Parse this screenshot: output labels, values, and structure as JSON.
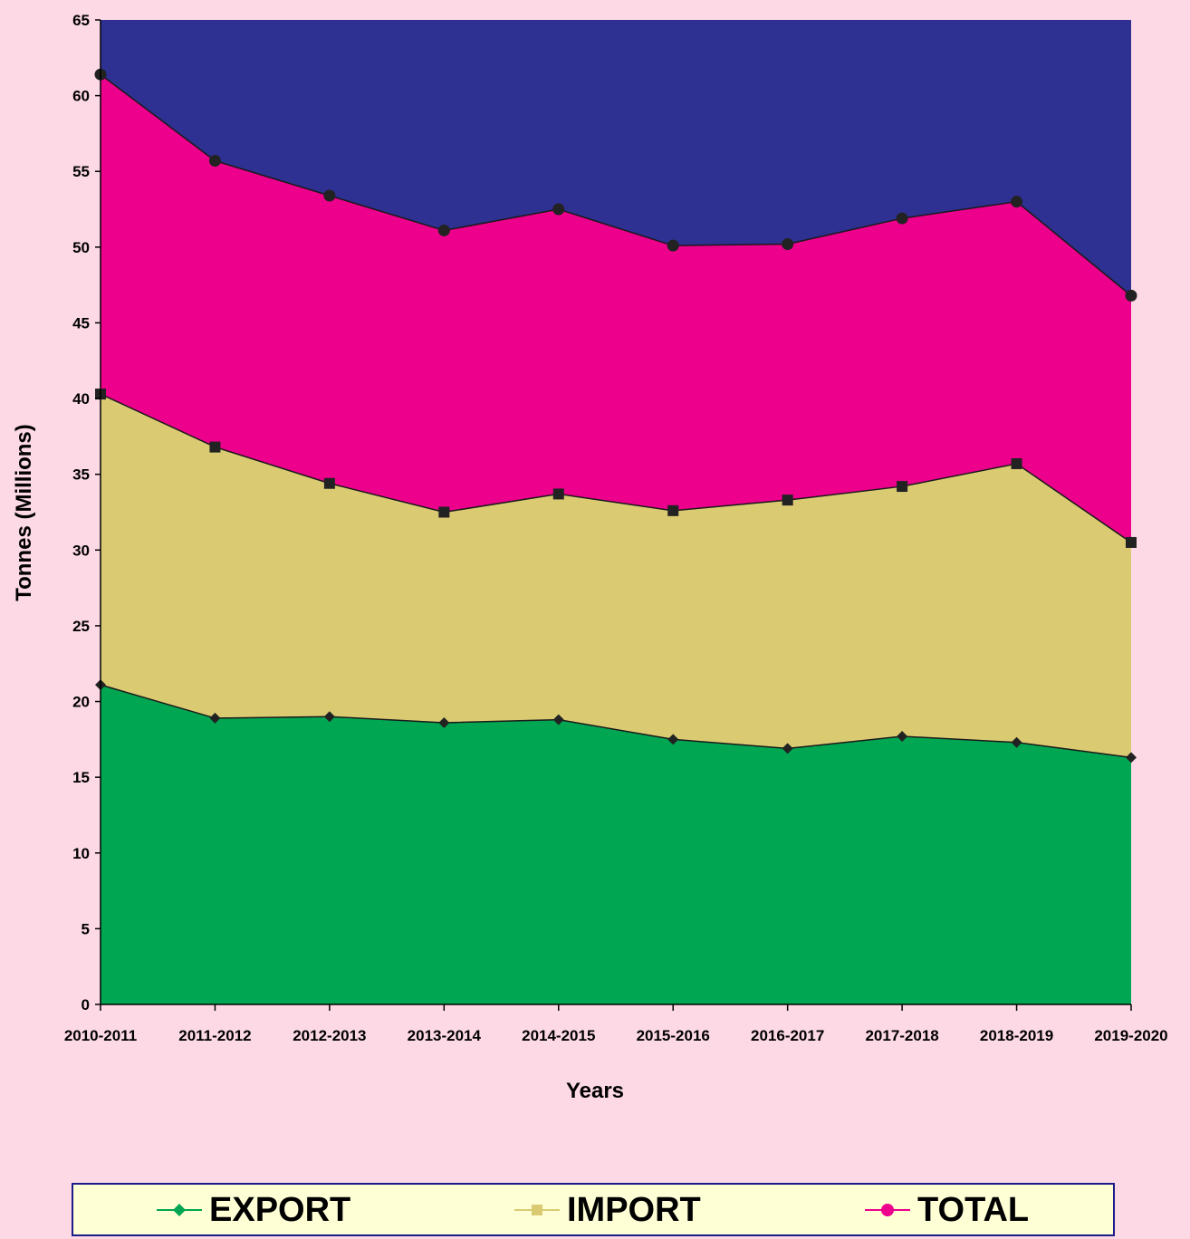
{
  "chart_data": {
    "type": "area",
    "stacked": true,
    "categories": [
      "2010-2011",
      "2011-2012",
      "2012-2013",
      "2013-2014",
      "2014-2015",
      "2015-2016",
      "2016-2017",
      "2017-2018",
      "2018-2019",
      "2019-2020"
    ],
    "series": [
      {
        "name": "EXPORT",
        "color": "#00a651",
        "line_color": "#00a651",
        "marker": "diamond",
        "values": [
          21.1,
          18.9,
          19.0,
          18.6,
          18.8,
          17.5,
          16.9,
          17.7,
          17.3,
          16.3
        ]
      },
      {
        "name": "IMPORT",
        "color": "#dacb73",
        "line_color": "#dacb73",
        "marker": "square",
        "values": [
          40.3,
          36.8,
          34.4,
          32.5,
          33.7,
          32.6,
          33.3,
          34.2,
          35.7,
          30.5
        ]
      },
      {
        "name": "TOTAL",
        "color": "#ec008c",
        "line_color": "#ec008c",
        "marker": "circle",
        "values": [
          61.4,
          55.7,
          53.4,
          51.1,
          52.5,
          50.1,
          50.2,
          51.9,
          53.0,
          46.8
        ]
      }
    ],
    "above_fill_color": "#2e3192",
    "xlabel": "Years",
    "ylabel": "Tonnes (Millions)",
    "ylim": [
      0,
      65
    ],
    "yticks": [
      "0",
      "5",
      "10",
      "15",
      "20",
      "25",
      "30",
      "35",
      "40",
      "45",
      "50",
      "55",
      "60",
      "65"
    ],
    "grid": false,
    "legend_position": "bottom"
  }
}
